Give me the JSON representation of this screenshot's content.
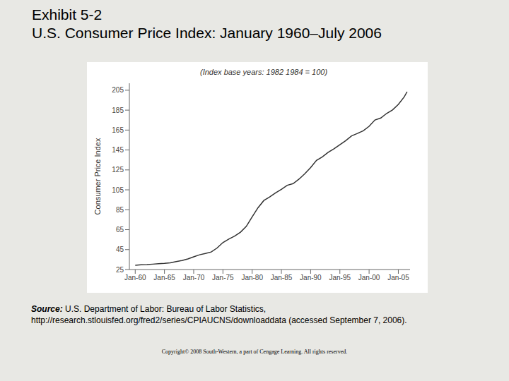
{
  "chart_data": {
    "type": "line",
    "exhibit": "Exhibit 5-2",
    "title": "U.S. Consumer Price Index: January 1960–July 2006",
    "subtitle": "(Index base years: 1982 1984 = 100)",
    "y_label": "Consumer Price Index",
    "source_label": "Source:",
    "source": "U.S. Department of Labor: Bureau of Labor Statistics, http://research.stlouisfed.org/fred2/series/CPIAUCNS/downloaddata (accessed September 7, 2006).",
    "copyright": "Copyright© 2008 South-Western, a part of Cengage Learning. All rights reserved.",
    "x": [
      1960,
      1961,
      1962,
      1963,
      1964,
      1965,
      1966,
      1967,
      1968,
      1969,
      1970,
      1971,
      1972,
      1973,
      1974,
      1975,
      1976,
      1977,
      1978,
      1979,
      1980,
      1981,
      1982,
      1983,
      1984,
      1985,
      1986,
      1987,
      1988,
      1989,
      1990,
      1991,
      1992,
      1993,
      1994,
      1995,
      1996,
      1997,
      1998,
      1999,
      2000,
      2001,
      2002,
      2003,
      2004,
      2005,
      2006,
      2006.5
    ],
    "values": [
      29.3,
      29.8,
      30.0,
      30.4,
      30.9,
      31.2,
      31.8,
      32.9,
      34.1,
      35.6,
      37.8,
      39.8,
      41.1,
      42.6,
      46.6,
      52.1,
      55.6,
      58.5,
      62.5,
      68.3,
      77.8,
      87.0,
      94.3,
      97.8,
      101.9,
      105.5,
      109.6,
      111.2,
      115.7,
      121.1,
      127.4,
      134.6,
      138.1,
      142.6,
      146.2,
      150.3,
      154.4,
      159.1,
      161.6,
      164.3,
      168.8,
      175.1,
      177.1,
      181.7,
      185.2,
      190.7,
      198.3,
      203.5
    ],
    "color": "#333333",
    "xlim": [
      1959,
      2007
    ],
    "xticks": [
      {
        "value": 1960,
        "label": "Jan-60"
      },
      {
        "value": 1965,
        "label": "Jan-65"
      },
      {
        "value": 1970,
        "label": "Jan-70"
      },
      {
        "value": 1975,
        "label": "Jan-75"
      },
      {
        "value": 1980,
        "label": "Jan-80"
      },
      {
        "value": 1985,
        "label": "Jan-85"
      },
      {
        "value": 1990,
        "label": "Jan-90"
      },
      {
        "value": 1995,
        "label": "Jan-95"
      },
      {
        "value": 2000,
        "label": "Jan-00"
      },
      {
        "value": 2005,
        "label": "Jan-05"
      }
    ],
    "ylim": [
      25,
      212
    ],
    "yticks": [
      25,
      45,
      65,
      85,
      105,
      125,
      145,
      165,
      185,
      205
    ],
    "grid": false
  }
}
